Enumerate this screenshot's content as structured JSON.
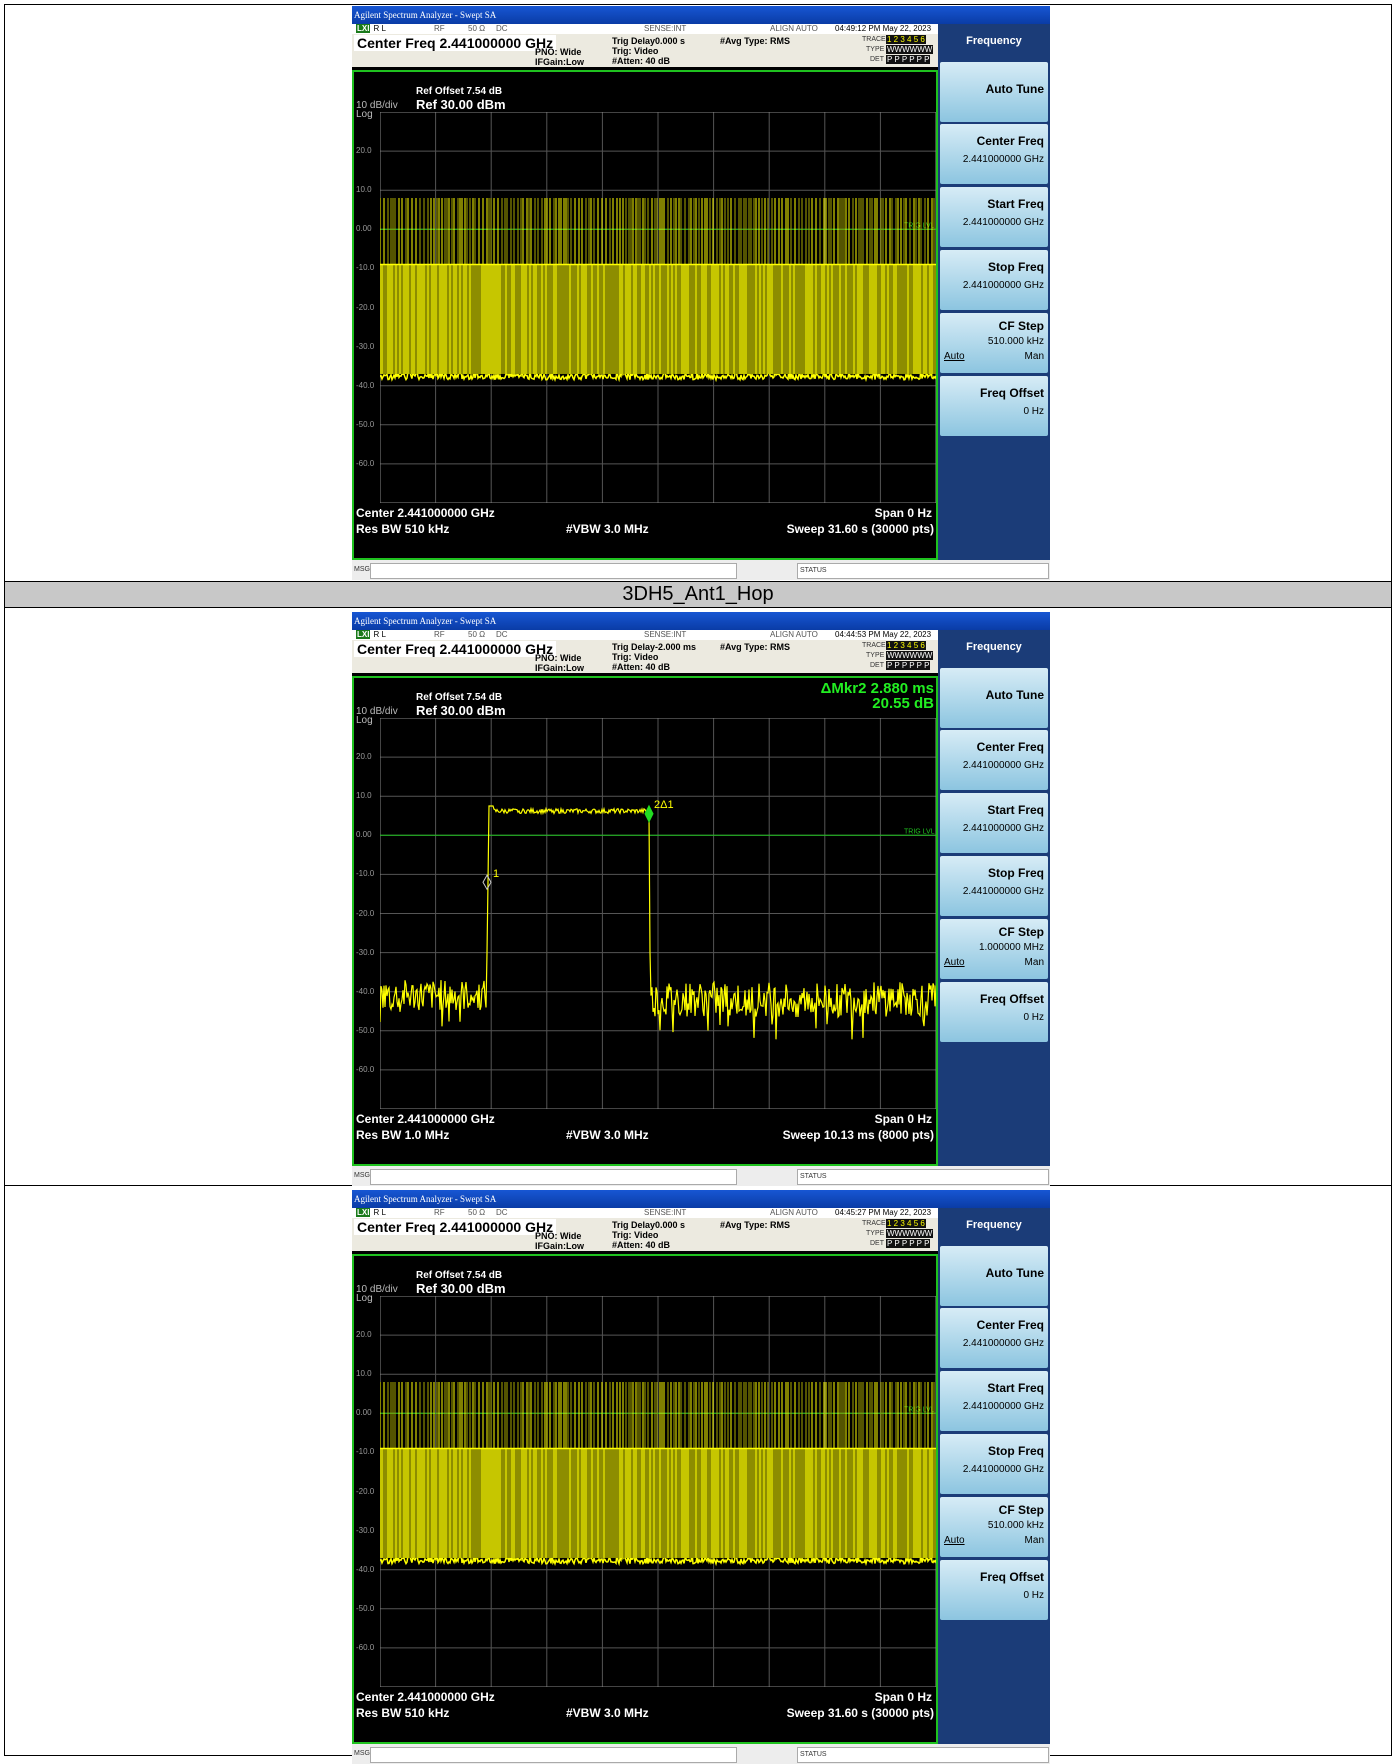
{
  "row_header": "3DH5_Ant1_Hop",
  "common": {
    "title_bar": "Agilent Spectrum Analyzer - Swept SA",
    "rl": "R L",
    "rl_badge": "LXI",
    "rf": "RF",
    "ohm": "50 Ω",
    "dc": "DC",
    "sense": "SENSE:INT",
    "align": "ALIGN AUTO",
    "center_freq_line": "Center Freq 2.441000000 GHz",
    "pno": "PNO: Wide",
    "ifgain": "IFGain:Low",
    "trig": "Trig: Video",
    "atten": "#Atten: 40 dB",
    "avg_type": "#Avg Type: RMS",
    "trace_label": "TRACE",
    "trace_nums": "1 2 3 4 5 6",
    "type_label": "TYPE",
    "type_val": "WWWWWW",
    "det_label": "DET",
    "det_val": "P P P P P P",
    "scale_div": "10 dB/div",
    "scale_log": "Log",
    "ref_offset": "Ref Offset 7.54 dB",
    "ref_level": "Ref 30.00 dBm",
    "trig_lvl": "TRIG LVL",
    "center_bottom": "Center 2.441000000 GHz",
    "span_bottom": "Span 0 Hz",
    "vbw": "#VBW 3.0 MHz",
    "msg": "MSG",
    "status": "STATUS",
    "y_ticks": [
      "20.0",
      "10.0",
      "0.00",
      "-10.0",
      "-20.0",
      "-30.0",
      "-40.0",
      "-50.0",
      "-60.0"
    ],
    "softkey_header": "Frequency",
    "softkeys": {
      "auto_tune": "Auto Tune",
      "center_freq": "Center Freq",
      "center_freq_val": "2.441000000 GHz",
      "start_freq": "Start Freq",
      "start_freq_val": "2.441000000 GHz",
      "stop_freq": "Stop Freq",
      "stop_freq_val": "2.441000000 GHz",
      "cf_step": "CF Step",
      "auto": "Auto",
      "man": "Man",
      "freq_offset": "Freq Offset",
      "freq_offset_val": "0 Hz"
    }
  },
  "screens": [
    {
      "timestamp": "04:49:12 PM May 22, 2023",
      "trig_delay": "Trig Delay0.000 s",
      "res_bw": "Res BW 510 kHz",
      "sweep": "Sweep  31.60 s (30000 pts)",
      "cf_step_val": "510.000 kHz",
      "trace": "hopping"
    },
    {
      "timestamp": "04:44:53 PM May 22, 2023",
      "trig_delay": "Trig Delay-2.000 ms",
      "res_bw": "Res BW 1.0 MHz",
      "sweep": "Sweep  10.13 ms (8000 pts)",
      "cf_step_val": "1.000000 MHz",
      "delta_marker": "ΔMkr2 2.880 ms",
      "delta_value": "20.55 dB",
      "marker1": "1",
      "marker2": "2Δ1",
      "trace": "burst"
    },
    {
      "timestamp": "04:45:27 PM May 22, 2023",
      "trig_delay": "Trig Delay0.000 s",
      "res_bw": "Res BW 510 kHz",
      "sweep": "Sweep  31.60 s (30000 pts)",
      "cf_step_val": "510.000 kHz",
      "trace": "hopping"
    }
  ]
}
